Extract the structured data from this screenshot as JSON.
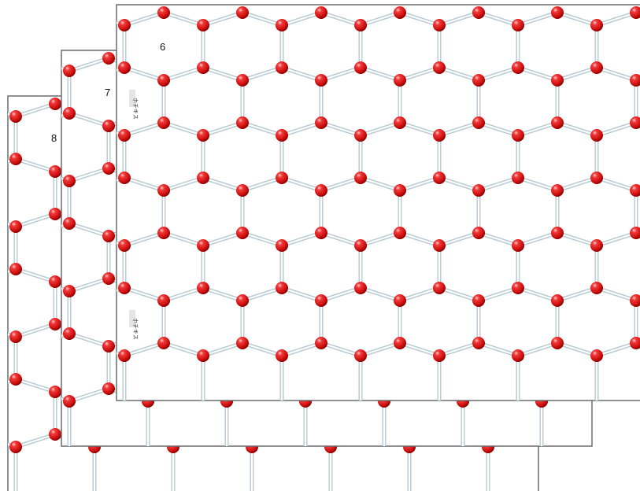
{
  "pages": [
    {
      "number": "8"
    },
    {
      "number": "7"
    },
    {
      "number": "6",
      "staple_labels": [
        "ホチキス",
        "ホチキス"
      ]
    }
  ]
}
